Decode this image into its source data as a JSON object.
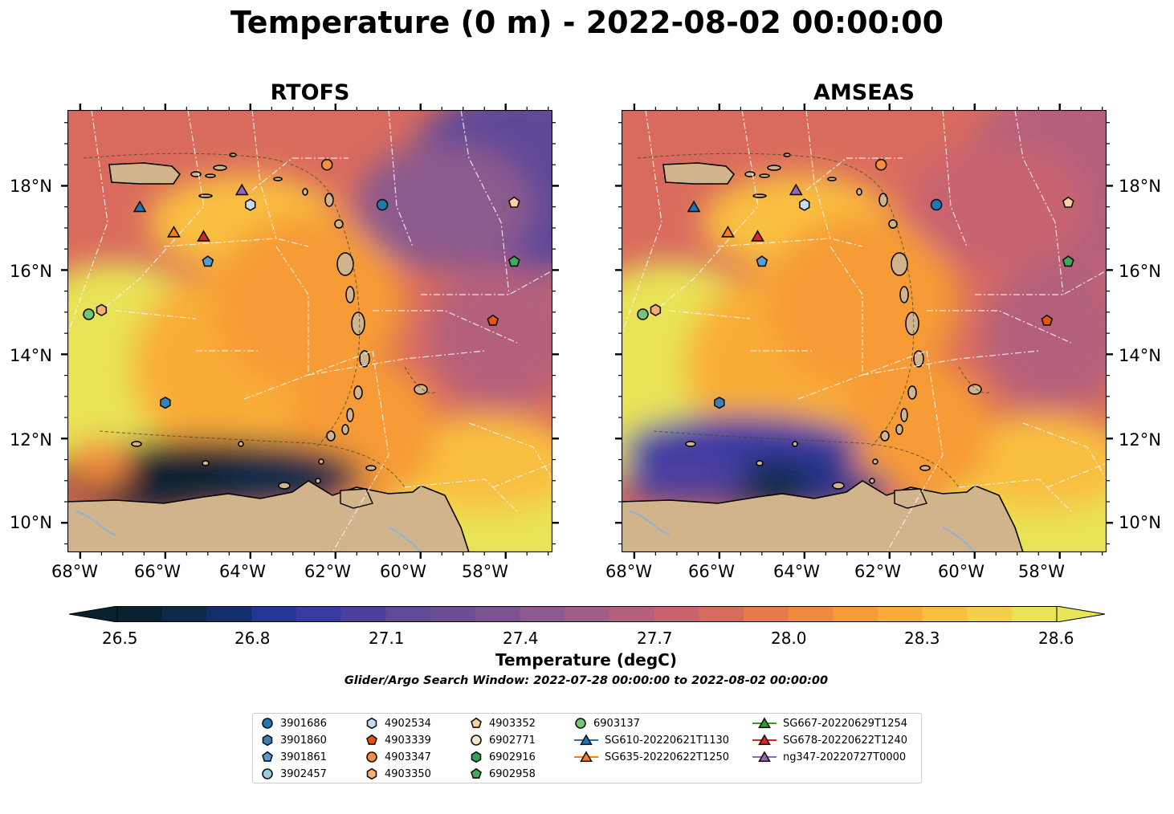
{
  "figure": {
    "title": "Temperature (0 m) - 2022-08-02 00:00:00"
  },
  "panels": [
    {
      "title": "RTOFS"
    },
    {
      "title": "AMSEAS"
    }
  ],
  "axes": {
    "lon_ticks": [
      "68°W",
      "66°W",
      "64°W",
      "62°W",
      "60°W",
      "58°W"
    ],
    "lat_ticks": [
      "18°N",
      "16°N",
      "14°N",
      "12°N",
      "10°N"
    ],
    "lon_range": [
      -68.3,
      -56.9
    ],
    "lat_range": [
      9.3,
      19.8
    ]
  },
  "colorbar": {
    "title": "Temperature (degC)",
    "ticks": [
      "26.5",
      "26.8",
      "27.1",
      "27.4",
      "27.7",
      "28.0",
      "28.3",
      "28.6"
    ],
    "range": [
      26.5,
      28.6
    ],
    "extend": "both",
    "colors": [
      "#0a2230",
      "#0d2a49",
      "#132f6b",
      "#233694",
      "#3a3aa4",
      "#4b3f9e",
      "#5e4a97",
      "#6b4f93",
      "#7a5490",
      "#8c5a8d",
      "#a05e86",
      "#b4607c",
      "#c8636f",
      "#d96b5e",
      "#e8794b",
      "#f08a3e",
      "#f69b36",
      "#f9ad38",
      "#f9bf40",
      "#f3d04b",
      "#e8e357"
    ]
  },
  "search_window": "Glider/Argo Search Window: 2022-07-28 00:00:00 to 2022-08-02 00:00:00",
  "land_color": "#d2b48c",
  "legend": [
    {
      "label": "3901686",
      "marker": "circle",
      "color": "#1f77b4"
    },
    {
      "label": "3901860",
      "marker": "hexagon",
      "color": "#3b7fb8"
    },
    {
      "label": "3901861",
      "marker": "pentagon",
      "color": "#5b9bd5"
    },
    {
      "label": "3902457",
      "marker": "circle",
      "color": "#9ecae1"
    },
    {
      "label": "4902534",
      "marker": "hexagon",
      "color": "#c6dbef"
    },
    {
      "label": "4903339",
      "marker": "pentagon",
      "color": "#e6550d"
    },
    {
      "label": "4903347",
      "marker": "circle",
      "color": "#fd8d3c"
    },
    {
      "label": "4903350",
      "marker": "hexagon",
      "color": "#fdae6b"
    },
    {
      "label": "4903352",
      "marker": "pentagon",
      "color": "#fdd0a2"
    },
    {
      "label": "6902771",
      "marker": "circle",
      "color": "#fee6ce"
    },
    {
      "label": "6902916",
      "marker": "hexagon",
      "color": "#31a354"
    },
    {
      "label": "6902958",
      "marker": "pentagon",
      "color": "#41ab5d"
    },
    {
      "label": "6903137",
      "marker": "circle",
      "color": "#74c476"
    },
    {
      "label": "SG610-20220621T1130",
      "marker": "triangle",
      "color": "#1f77b4",
      "line": true
    },
    {
      "label": "SG635-20220622T1250",
      "marker": "triangle",
      "color": "#ff7f0e",
      "line": true
    },
    {
      "label": "SG667-20220629T1254",
      "marker": "triangle",
      "color": "#2ca02c",
      "line": true
    },
    {
      "label": "SG678-20220622T1240",
      "marker": "triangle",
      "color": "#d62728",
      "line": true
    },
    {
      "label": "ng347-20220727T0000",
      "marker": "triangle",
      "color": "#9467bd",
      "line": true
    }
  ],
  "observations": [
    {
      "id": "3901686",
      "lon": -60.9,
      "lat": 17.55
    },
    {
      "id": "3901860",
      "lon": -66.0,
      "lat": 12.85
    },
    {
      "id": "3901861",
      "lon": -65.0,
      "lat": 16.2
    },
    {
      "id": "4902534",
      "lon": -64.0,
      "lat": 17.55
    },
    {
      "id": "4903339",
      "lon": -58.3,
      "lat": 14.8
    },
    {
      "id": "4903347",
      "lon": -62.2,
      "lat": 18.5
    },
    {
      "id": "4903350",
      "lon": -67.5,
      "lat": 15.05
    },
    {
      "id": "4903352",
      "lon": -57.8,
      "lat": 17.6
    },
    {
      "id": "6902958",
      "lon": -57.8,
      "lat": 16.2
    },
    {
      "id": "6903137",
      "lon": -67.8,
      "lat": 14.95
    },
    {
      "id": "SG610-20220621T1130",
      "lon": -66.6,
      "lat": 17.5
    },
    {
      "id": "SG635-20220622T1250",
      "lon": -65.8,
      "lat": 16.9
    },
    {
      "id": "SG678-20220622T1240",
      "lon": -65.1,
      "lat": 16.8
    },
    {
      "id": "ng347-20220727T0000",
      "lon": -64.2,
      "lat": 17.9
    }
  ]
}
